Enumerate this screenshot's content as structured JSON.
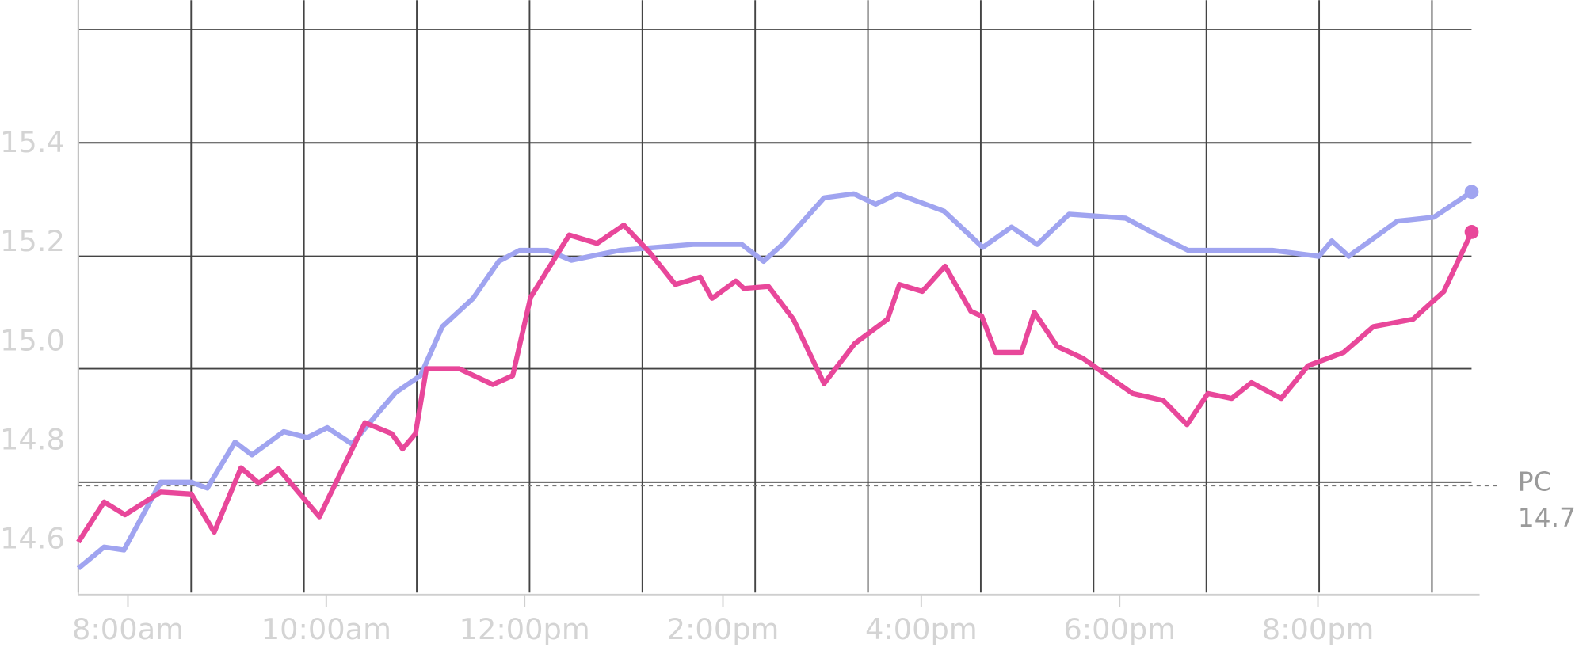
{
  "chart_data": {
    "type": "line",
    "xlim": [
      7.5,
      21.63
    ],
    "xticks": [
      {
        "value": 8,
        "label": "8:00am"
      },
      {
        "value": 10,
        "label": "10:00am"
      },
      {
        "value": 12,
        "label": "12:00pm"
      },
      {
        "value": 14,
        "label": "2:00pm"
      },
      {
        "value": 16,
        "label": "4:00pm"
      },
      {
        "value": 18,
        "label": "6:00pm"
      },
      {
        "value": 20,
        "label": "8:00pm"
      }
    ],
    "ylim": [
      14.49,
      15.69
    ],
    "yticks": [
      14.6,
      14.8,
      {
        "value": 15,
        "label": "15.0"
      },
      15.2,
      15.4
    ],
    "series": [
      {
        "color": "#a0a4f0",
        "x": [
          7.5,
          7.76,
          7.96,
          8.33,
          8.64,
          8.8,
          9.08,
          9.25,
          9.57,
          9.81,
          10.01,
          10.26,
          10.43,
          10.7,
          10.95,
          11.17,
          11.48,
          11.74,
          11.95,
          12.23,
          12.47,
          12.96,
          13.7,
          14.19,
          14.41,
          14.6,
          15.02,
          15.32,
          15.54,
          15.76,
          16.23,
          16.62,
          16.91,
          17.17,
          17.49,
          18.06,
          18.36,
          18.69,
          19.54,
          20.01,
          20.14,
          20.31,
          20.8,
          21.17,
          21.55
        ],
        "values": [
          14.543,
          14.586,
          14.58,
          14.717,
          14.717,
          14.705,
          14.798,
          14.772,
          14.819,
          14.807,
          14.827,
          14.794,
          14.835,
          14.898,
          14.932,
          15.031,
          15.088,
          15.163,
          15.185,
          15.185,
          15.165,
          15.185,
          15.197,
          15.197,
          15.163,
          15.197,
          15.291,
          15.299,
          15.278,
          15.299,
          15.264,
          15.191,
          15.232,
          15.197,
          15.258,
          15.25,
          15.218,
          15.185,
          15.185,
          15.173,
          15.204,
          15.173,
          15.244,
          15.252,
          15.303
        ]
      },
      {
        "color": "#e8479a",
        "x": [
          7.5,
          7.76,
          7.97,
          8.33,
          8.64,
          8.87,
          9.14,
          9.32,
          9.52,
          9.93,
          10.39,
          10.66,
          10.77,
          10.9,
          11.01,
          11.34,
          11.68,
          11.88,
          12.06,
          12.45,
          12.73,
          13.0,
          13.26,
          13.52,
          13.77,
          13.89,
          14.13,
          14.21,
          14.46,
          14.71,
          15.02,
          15.33,
          15.66,
          15.78,
          16.01,
          16.24,
          16.5,
          16.61,
          16.75,
          17.01,
          17.14,
          17.37,
          17.63,
          18.13,
          18.44,
          18.68,
          18.89,
          19.13,
          19.33,
          19.63,
          19.9,
          20.26,
          20.56,
          20.96,
          21.27,
          21.55
        ],
        "values": [
          14.596,
          14.677,
          14.651,
          14.697,
          14.693,
          14.616,
          14.746,
          14.715,
          14.744,
          14.647,
          14.837,
          14.815,
          14.784,
          14.815,
          14.946,
          14.946,
          14.914,
          14.932,
          15.09,
          15.216,
          15.199,
          15.236,
          15.181,
          15.116,
          15.131,
          15.088,
          15.123,
          15.108,
          15.112,
          15.046,
          14.916,
          14.997,
          15.046,
          15.116,
          15.102,
          15.153,
          15.062,
          15.052,
          14.979,
          14.979,
          15.06,
          14.991,
          14.967,
          14.896,
          14.882,
          14.833,
          14.896,
          14.886,
          14.918,
          14.886,
          14.952,
          14.979,
          15.031,
          15.046,
          15.102,
          15.222
        ]
      }
    ],
    "reference_line": {
      "label": "PC",
      "value": 14.71
    }
  }
}
